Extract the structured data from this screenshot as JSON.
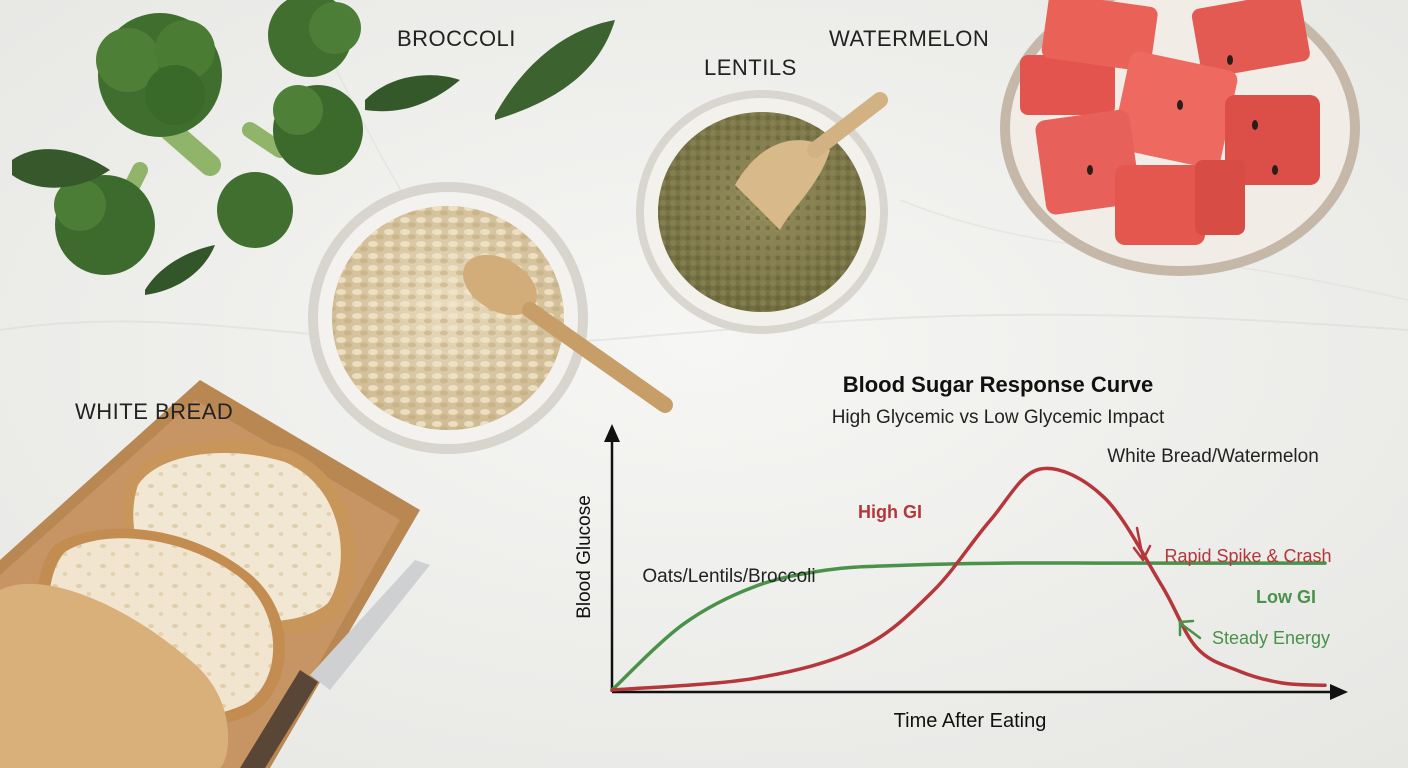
{
  "labels": {
    "broccoli": "BROCCOLI",
    "lentils": "LENTILS",
    "watermelon": "WATERMELON",
    "white_bread": "WHITE BREAD"
  },
  "colors": {
    "high_gi": "#b5363b",
    "low_gi": "#4a914a",
    "axis": "#111111",
    "background": "#efefed"
  },
  "icons": [
    "broccoli-image",
    "lentils-bowl-image",
    "oats-bowl-image",
    "watermelon-bowl-image",
    "white-bread-image",
    "knife-image",
    "up-arrow-icon",
    "right-arrow-icon",
    "down-arrow-icon",
    "up-left-arrow-icon"
  ],
  "chart_data": {
    "type": "line",
    "title": "Blood Sugar Response Curve",
    "subtitle": "High Glycemic vs Low Glycemic Impact",
    "xlabel": "Time After Eating",
    "ylabel": "Blood Glucose",
    "xlim": [
      0,
      100
    ],
    "ylim": [
      0,
      100
    ],
    "grid": false,
    "legend": "inline",
    "series": [
      {
        "name": "High GI",
        "color": "#b5363b",
        "x": [
          0,
          20,
          35,
          45,
          53,
          60,
          69,
          77,
          82,
          88,
          94,
          100
        ],
        "y": [
          0,
          5,
          18,
          42,
          72,
          94,
          82,
          45,
          18,
          8,
          3,
          2
        ]
      },
      {
        "name": "Low GI",
        "color": "#4a914a",
        "x": [
          0,
          10,
          20,
          30,
          40,
          55,
          70,
          85,
          100
        ],
        "y": [
          0,
          28,
          44,
          51,
          53,
          54,
          54,
          54,
          54
        ]
      }
    ],
    "annotations": {
      "high_series_food": "White Bread/Watermelon",
      "low_series_food": "Oats/Lentils/Broccoli",
      "high_effect": "Rapid Spike & Crash",
      "low_effect": "Steady Energy"
    }
  }
}
